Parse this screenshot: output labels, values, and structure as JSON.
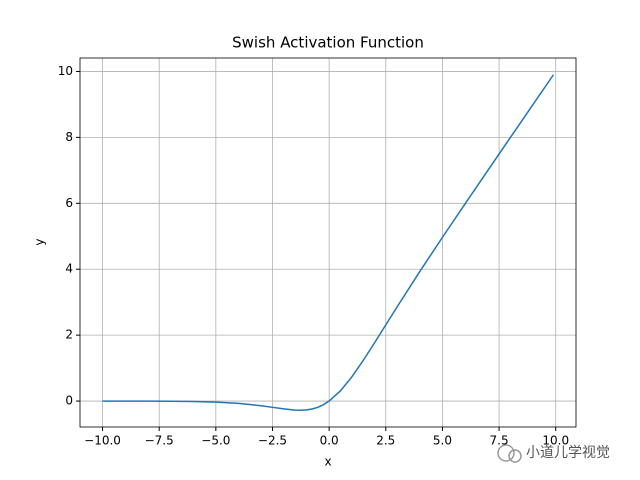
{
  "chart_data": {
    "type": "line",
    "title": "Swish Activation Function",
    "x_label": "x",
    "y_label": "y",
    "x": [
      -10,
      -9,
      -8,
      -7,
      -6,
      -5,
      -4,
      -3.5,
      -3,
      -2.5,
      -2,
      -1.5,
      -1.25,
      -1,
      -0.75,
      -0.5,
      -0.25,
      0,
      0.5,
      1,
      1.5,
      2,
      2.5,
      3,
      4,
      5,
      6,
      7,
      8,
      9,
      9.9
    ],
    "series": [
      {
        "name": "Swish",
        "color": "#1f77b4",
        "values": [
          -0.000454,
          -0.00111,
          -0.00268,
          -0.00637,
          -0.01484,
          -0.0335,
          -0.0719,
          -0.1057,
          -0.1423,
          -0.1897,
          -0.2384,
          -0.2736,
          -0.2784,
          -0.2689,
          -0.2406,
          -0.1888,
          -0.1095,
          0,
          0.3112,
          0.7311,
          1.2264,
          1.7616,
          2.3103,
          2.8577,
          3.9281,
          4.9665,
          5.9852,
          6.9936,
          7.9973,
          8.9989,
          9.8995
        ]
      }
    ],
    "xlim": [
      -10.995,
      10.895
    ],
    "ylim": [
      -0.787,
      10.408
    ],
    "xticks": [
      {
        "value": -10,
        "label": "−10.0"
      },
      {
        "value": -7.5,
        "label": "−7.5"
      },
      {
        "value": -5,
        "label": "−5.0"
      },
      {
        "value": -2.5,
        "label": "−2.5"
      },
      {
        "value": 0,
        "label": "0.0"
      },
      {
        "value": 2.5,
        "label": "2.5"
      },
      {
        "value": 5,
        "label": "5.0"
      },
      {
        "value": 7.5,
        "label": "7.5"
      },
      {
        "value": 10,
        "label": "10.0"
      }
    ],
    "yticks": [
      0,
      2,
      4,
      6,
      8,
      10
    ],
    "grid": true,
    "watermark": "小道儿学视觉"
  }
}
